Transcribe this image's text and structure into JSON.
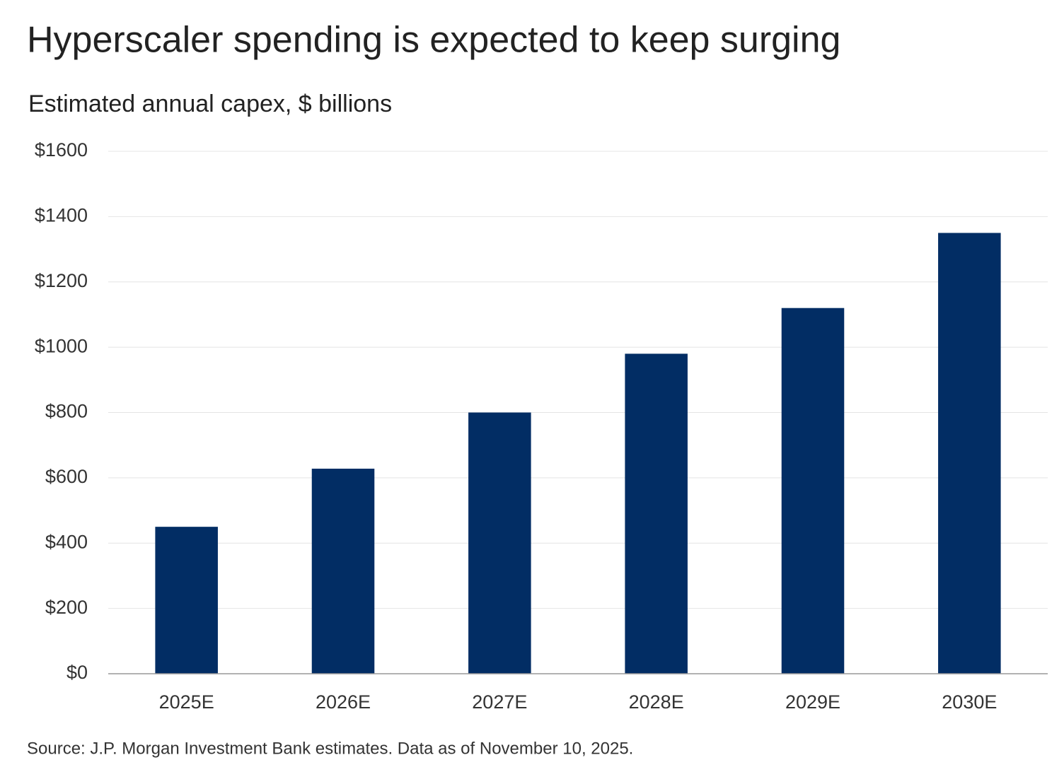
{
  "chart_data": {
    "type": "bar",
    "title": "Hyperscaler spending is expected to keep surging",
    "subtitle": "Estimated annual capex, $ billions",
    "source": "Source: J.P. Morgan Investment Bank estimates. Data as of November 10, 2025.",
    "categories": [
      "2025E",
      "2026E",
      "2027E",
      "2028E",
      "2029E",
      "2030E"
    ],
    "values": [
      450,
      628,
      800,
      980,
      1120,
      1350
    ],
    "color": "#022d64",
    "ylim": [
      0,
      1600
    ],
    "yticks": [
      {
        "value": 0,
        "label": "$0"
      },
      {
        "value": 200,
        "label": "$200"
      },
      {
        "value": 400,
        "label": "$400"
      },
      {
        "value": 600,
        "label": "$600"
      },
      {
        "value": 800,
        "label": "$800"
      },
      {
        "value": 1000,
        "label": "$1000"
      },
      {
        "value": 1200,
        "label": "$1200"
      },
      {
        "value": 1400,
        "label": "$1400"
      },
      {
        "value": 1600,
        "label": "$1600"
      }
    ],
    "grid": true
  }
}
